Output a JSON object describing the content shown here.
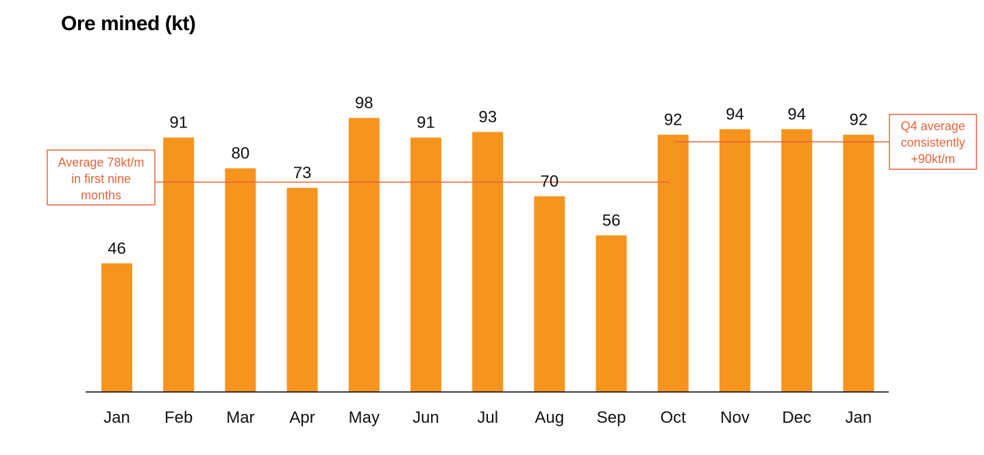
{
  "chart_data": {
    "type": "bar",
    "title": "Ore mined (kt)",
    "categories": [
      "Jan",
      "Feb",
      "Mar",
      "Apr",
      "May",
      "Jun",
      "Jul",
      "Aug",
      "Sep",
      "Oct",
      "Nov",
      "Dec",
      "Jan"
    ],
    "values": [
      46,
      91,
      80,
      73,
      98,
      91,
      93,
      70,
      56,
      92,
      94,
      94,
      92
    ],
    "data_labels": [
      "46",
      "91",
      "80",
      "73",
      "98",
      "91",
      "93",
      "70",
      "56",
      "92",
      "94",
      "94",
      "92"
    ],
    "ylim": [
      0,
      100
    ],
    "grid": false,
    "bar_color": "#F7941D",
    "annotations": [
      {
        "name": "nine-month-average",
        "lines": [
          "Average 78kt/m",
          "in first nine",
          "months"
        ],
        "value": 78,
        "from_category_index": 0,
        "to_category_index": 9,
        "color": "#E8623A"
      },
      {
        "name": "q4-average",
        "lines": [
          "Q4 average",
          "consistently",
          "+90kt/m"
        ],
        "value": 90,
        "from_category_index": 9,
        "to_category_index": 12,
        "color": "#E8623A"
      }
    ]
  }
}
